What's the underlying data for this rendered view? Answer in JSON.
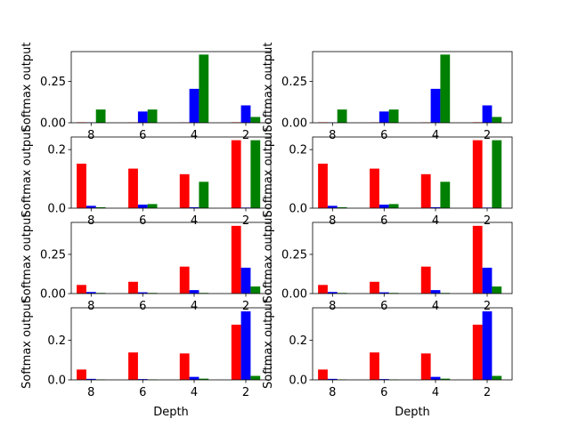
{
  "colors": {
    "red": "#ff0000",
    "blue": "#0000ff",
    "green": "#008000"
  },
  "chart_data": [
    {
      "type": "bar",
      "categories": [
        "8",
        "6",
        "4",
        "2"
      ],
      "series": [
        {
          "values": [
            0.003,
            0.002,
            0.002,
            0.003
          ]
        },
        {
          "values": [
            0.002,
            0.068,
            0.205,
            0.105
          ]
        },
        {
          "values": [
            0.08,
            0.08,
            0.412,
            0.035
          ]
        }
      ],
      "ylim": [
        0,
        0.43
      ],
      "yticks": [
        0,
        0.25
      ],
      "yticklabels": [
        "0.00",
        "0.25"
      ],
      "ylabel": "Softmax output",
      "xlabel": ""
    },
    {
      "type": "bar",
      "categories": [
        "8",
        "6",
        "4",
        "2"
      ],
      "series": [
        {
          "values": [
            0.003,
            0.002,
            0.002,
            0.003
          ]
        },
        {
          "values": [
            0.002,
            0.068,
            0.205,
            0.105
          ]
        },
        {
          "values": [
            0.08,
            0.08,
            0.412,
            0.035
          ]
        }
      ],
      "ylim": [
        0,
        0.43
      ],
      "yticks": [
        0,
        0.25
      ],
      "yticklabels": [
        "0.00",
        "0.25"
      ],
      "ylabel": "Softmax output",
      "xlabel": ""
    },
    {
      "type": "bar",
      "categories": [
        "8",
        "6",
        "4",
        "2"
      ],
      "series": [
        {
          "values": [
            0.152,
            0.135,
            0.116,
            0.232
          ]
        },
        {
          "values": [
            0.008,
            0.012,
            0.003,
            0.002
          ]
        },
        {
          "values": [
            0.003,
            0.014,
            0.09,
            0.232
          ]
        }
      ],
      "ylim": [
        0,
        0.243
      ],
      "yticks": [
        0,
        0.2
      ],
      "yticklabels": [
        "0.0",
        "0.2"
      ],
      "ylabel": "Softmax output",
      "xlabel": ""
    },
    {
      "type": "bar",
      "categories": [
        "8",
        "6",
        "4",
        "2"
      ],
      "series": [
        {
          "values": [
            0.152,
            0.135,
            0.116,
            0.232
          ]
        },
        {
          "values": [
            0.008,
            0.012,
            0.003,
            0.002
          ]
        },
        {
          "values": [
            0.003,
            0.014,
            0.09,
            0.232
          ]
        }
      ],
      "ylim": [
        0,
        0.243
      ],
      "yticks": [
        0,
        0.2
      ],
      "yticklabels": [
        "0.0",
        "0.2"
      ],
      "ylabel": "Softmax output",
      "xlabel": ""
    },
    {
      "type": "bar",
      "categories": [
        "8",
        "6",
        "4",
        "2"
      ],
      "series": [
        {
          "values": [
            0.055,
            0.075,
            0.172,
            0.432
          ]
        },
        {
          "values": [
            0.01,
            0.008,
            0.022,
            0.165
          ]
        },
        {
          "values": [
            0.004,
            0.004,
            0.004,
            0.045
          ]
        }
      ],
      "ylim": [
        0,
        0.454
      ],
      "yticks": [
        0,
        0.25
      ],
      "yticklabels": [
        "0.00",
        "0.25"
      ],
      "ylabel": "Softmax output",
      "xlabel": ""
    },
    {
      "type": "bar",
      "categories": [
        "8",
        "6",
        "4",
        "2"
      ],
      "series": [
        {
          "values": [
            0.055,
            0.075,
            0.172,
            0.432
          ]
        },
        {
          "values": [
            0.01,
            0.008,
            0.022,
            0.165
          ]
        },
        {
          "values": [
            0.004,
            0.004,
            0.004,
            0.045
          ]
        }
      ],
      "ylim": [
        0,
        0.454
      ],
      "yticks": [
        0,
        0.25
      ],
      "yticklabels": [
        "0.00",
        "0.25"
      ],
      "ylabel": "Softmax output",
      "xlabel": ""
    },
    {
      "type": "bar",
      "categories": [
        "8",
        "6",
        "4",
        "2"
      ],
      "series": [
        {
          "values": [
            0.052,
            0.138,
            0.133,
            0.278
          ]
        },
        {
          "values": [
            0.005,
            0.004,
            0.015,
            0.345
          ]
        },
        {
          "values": [
            0.002,
            0.002,
            0.006,
            0.02
          ]
        }
      ],
      "ylim": [
        0,
        0.363
      ],
      "yticks": [
        0,
        0.2
      ],
      "yticklabels": [
        "0.0",
        "0.2"
      ],
      "ylabel": "Softmax output",
      "xlabel": "Depth"
    },
    {
      "type": "bar",
      "categories": [
        "8",
        "6",
        "4",
        "2"
      ],
      "series": [
        {
          "values": [
            0.052,
            0.138,
            0.133,
            0.278
          ]
        },
        {
          "values": [
            0.005,
            0.004,
            0.015,
            0.345
          ]
        },
        {
          "values": [
            0.002,
            0.002,
            0.006,
            0.02
          ]
        }
      ],
      "ylim": [
        0,
        0.363
      ],
      "yticks": [
        0,
        0.2
      ],
      "yticklabels": [
        "0.0",
        "0.2"
      ],
      "ylabel": "Softmax output",
      "xlabel": "Depth"
    }
  ]
}
